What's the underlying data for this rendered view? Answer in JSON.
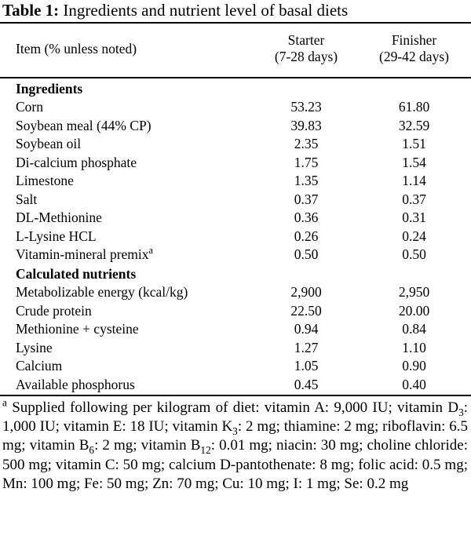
{
  "caption": {
    "label": "Table 1:",
    "text": " Ingredients and nutrient level of basal diets"
  },
  "header": {
    "item": "Item (% unless noted)",
    "starter": [
      "Starter",
      "(7-28 days)"
    ],
    "finisher": [
      "Finisher",
      "(29-42 days)"
    ]
  },
  "sections": {
    "ingredients": "Ingredients",
    "nutrients": "Calculated nutrients"
  },
  "ingredients": [
    {
      "label": "Corn",
      "starter": "53.23",
      "finisher": "61.80"
    },
    {
      "label": "Soybean meal (44% CP)",
      "starter": "39.83",
      "finisher": "32.59"
    },
    {
      "label": "Soybean oil",
      "starter": "2.35",
      "finisher": "1.51"
    },
    {
      "label": "Di-calcium phosphate",
      "starter": "1.75",
      "finisher": "1.54"
    },
    {
      "label": "Limestone",
      "starter": "1.35",
      "finisher": "1.14"
    },
    {
      "label": "Salt",
      "starter": "0.37",
      "finisher": "0.37"
    },
    {
      "label": "DL-Methionine",
      "starter": "0.36",
      "finisher": "0.31"
    },
    {
      "label": "L-Lysine HCL",
      "starter": "0.26",
      "finisher": "0.24"
    },
    {
      "label": "Vitamin-mineral premix",
      "sup": "a",
      "starter": "0.50",
      "finisher": "0.50"
    }
  ],
  "nutrients": [
    {
      "label": "Metabolizable energy (kcal/kg)",
      "starter": "2,900",
      "finisher": "2,950"
    },
    {
      "label": "Crude protein",
      "starter": "22.50",
      "finisher": "20.00"
    },
    {
      "label": "Methionine + cysteine",
      "starter": "0.94",
      "finisher": "0.84"
    },
    {
      "label": "Lysine",
      "starter": "1.27",
      "finisher": "1.10"
    },
    {
      "label": "Calcium",
      "starter": "1.05",
      "finisher": "0.90"
    },
    {
      "label": "Available phosphorus",
      "starter": "0.45",
      "finisher": "0.40"
    }
  ],
  "footnote": {
    "marker": "a",
    "parts": [
      {
        "t": " Supplied following per kilogram of diet: vitamin A: 9,000 IU; vitamin D"
      },
      {
        "sub": "3"
      },
      {
        "t": ": 1,000 IU; vitamin E: 18 IU; vitamin K"
      },
      {
        "sub": "3"
      },
      {
        "t": ": 2 mg; thiamine: 2 mg; riboflavin: 6.5 mg; vitamin B"
      },
      {
        "sub": "6"
      },
      {
        "t": ": 2 mg; vitamin B"
      },
      {
        "sub": "12"
      },
      {
        "t": ": 0.01 mg; niacin: 30 mg; choline chloride: 500 mg; vitamin C: 50 mg; calcium D-pantothenate: 8 mg; folic acid: 0.5 mg; Mn: 100 mg; Fe: 50 mg; Zn: 70 mg; Cu: 10 mg; I: 1 mg; Se: 0.2 mg"
      }
    ]
  }
}
